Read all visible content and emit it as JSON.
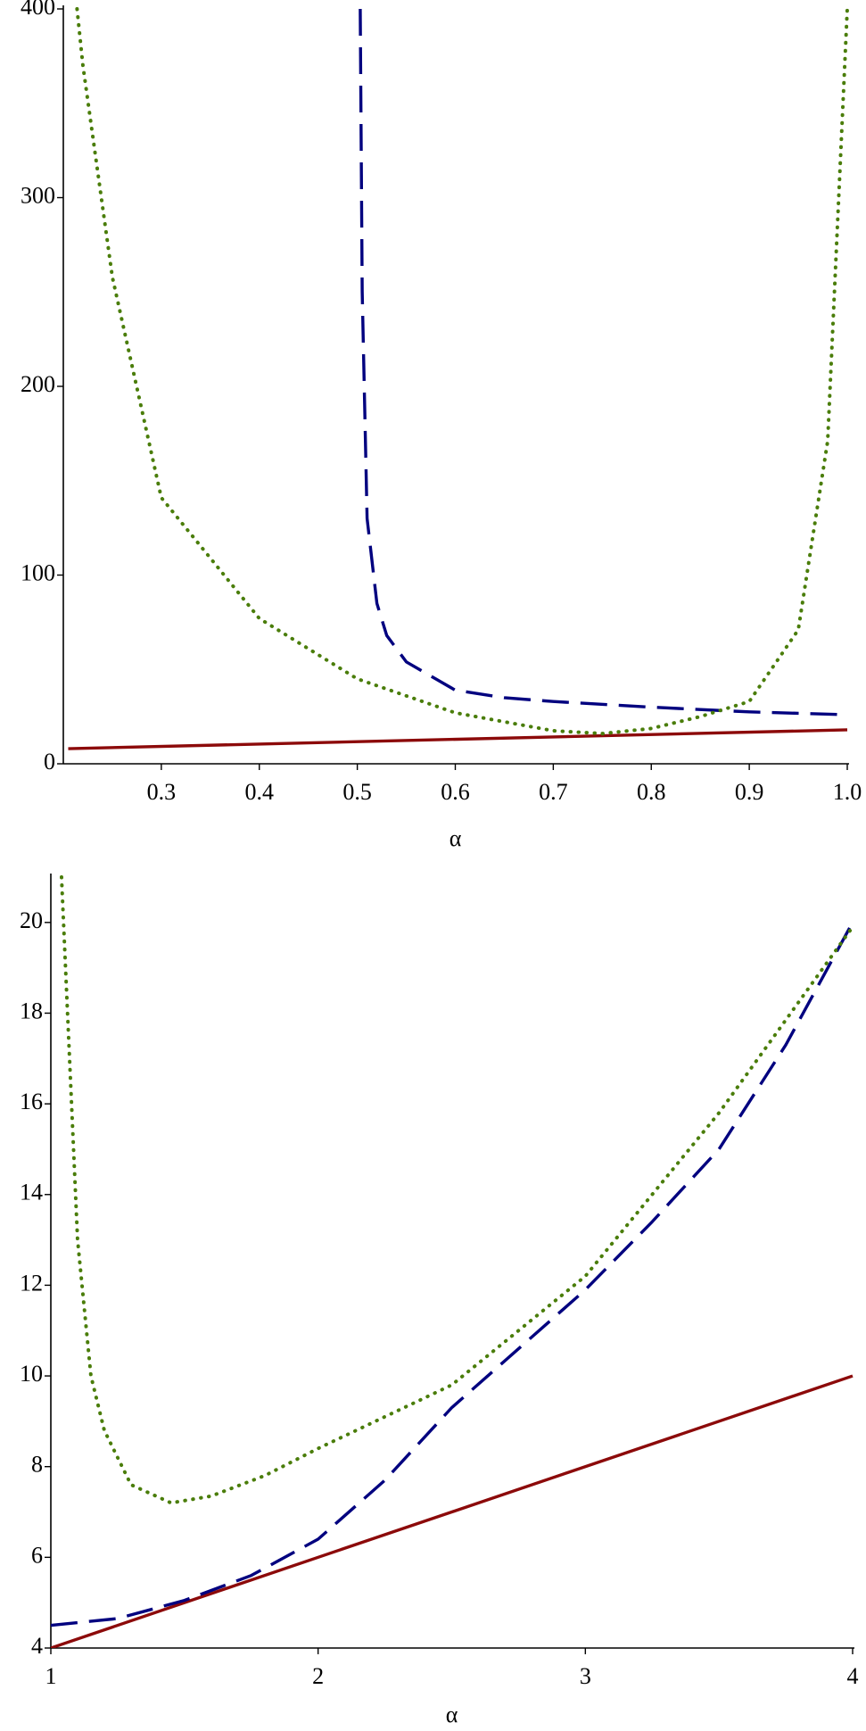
{
  "chart_data": [
    {
      "type": "line",
      "xlabel": "α",
      "xlim": [
        0.2,
        1.0
      ],
      "ylim": [
        0,
        400
      ],
      "xticks": [
        0.3,
        0.4,
        0.5,
        0.6,
        0.7,
        0.8,
        0.9,
        {
          "value": 1,
          "label": "1.0"
        }
      ],
      "yticks": [
        0,
        100,
        200,
        300,
        400
      ],
      "series": [
        {
          "color": "#8c0a0a",
          "dash": "solid",
          "x": [
            0.205,
            1.0
          ],
          "values": [
            8,
            18
          ]
        },
        {
          "color": "#00007f",
          "dash": "dashed",
          "x": [
            0.503,
            0.505,
            0.51,
            0.52,
            0.53,
            0.55,
            0.6,
            0.65,
            0.7,
            0.8,
            0.9,
            1.0
          ],
          "values": [
            400,
            250,
            130,
            85,
            68,
            54,
            39,
            35,
            33,
            30,
            27.5,
            26
          ]
        },
        {
          "color": "#4a7d0a",
          "dash": "dotted",
          "x": [
            0.214,
            0.22,
            0.25,
            0.3,
            0.4,
            0.5,
            0.6,
            0.7,
            0.75,
            0.8,
            0.85,
            0.9,
            0.95,
            0.98,
            1.0
          ],
          "values": [
            400,
            370,
            258,
            141,
            77,
            45,
            27,
            17.5,
            16,
            18.7,
            25,
            33,
            71,
            171,
            400
          ]
        }
      ]
    },
    {
      "type": "line",
      "xlabel": "α",
      "xlim": [
        1,
        4
      ],
      "ylim": [
        4,
        21
      ],
      "xticks": [
        1,
        2,
        3,
        4
      ],
      "yticks": [
        4,
        6,
        8,
        10,
        12,
        14,
        16,
        18,
        20
      ],
      "series": [
        {
          "color": "#8c0a0a",
          "dash": "solid",
          "x": [
            1,
            4
          ],
          "values": [
            4,
            10
          ]
        },
        {
          "color": "#00007f",
          "dash": "dashed",
          "x": [
            1,
            1.25,
            1.5,
            1.75,
            2,
            2.25,
            2.5,
            2.75,
            3,
            3.25,
            3.5,
            3.75,
            4
          ],
          "values": [
            4.5,
            4.65,
            5.05,
            5.6,
            6.4,
            7.7,
            9.3,
            10.6,
            11.9,
            13.4,
            15.0,
            17.3,
            20
          ]
        },
        {
          "color": "#4a7d0a",
          "dash": "dotted",
          "x": [
            1.04,
            1.07,
            1.1,
            1.15,
            1.2,
            1.3,
            1.45,
            1.6,
            1.8,
            2,
            2.5,
            3,
            3.5,
            4
          ],
          "values": [
            21,
            17,
            13,
            10,
            8.8,
            7.6,
            7.2,
            7.35,
            7.8,
            8.4,
            9.8,
            12.2,
            15.8,
            19.9
          ]
        }
      ]
    }
  ]
}
